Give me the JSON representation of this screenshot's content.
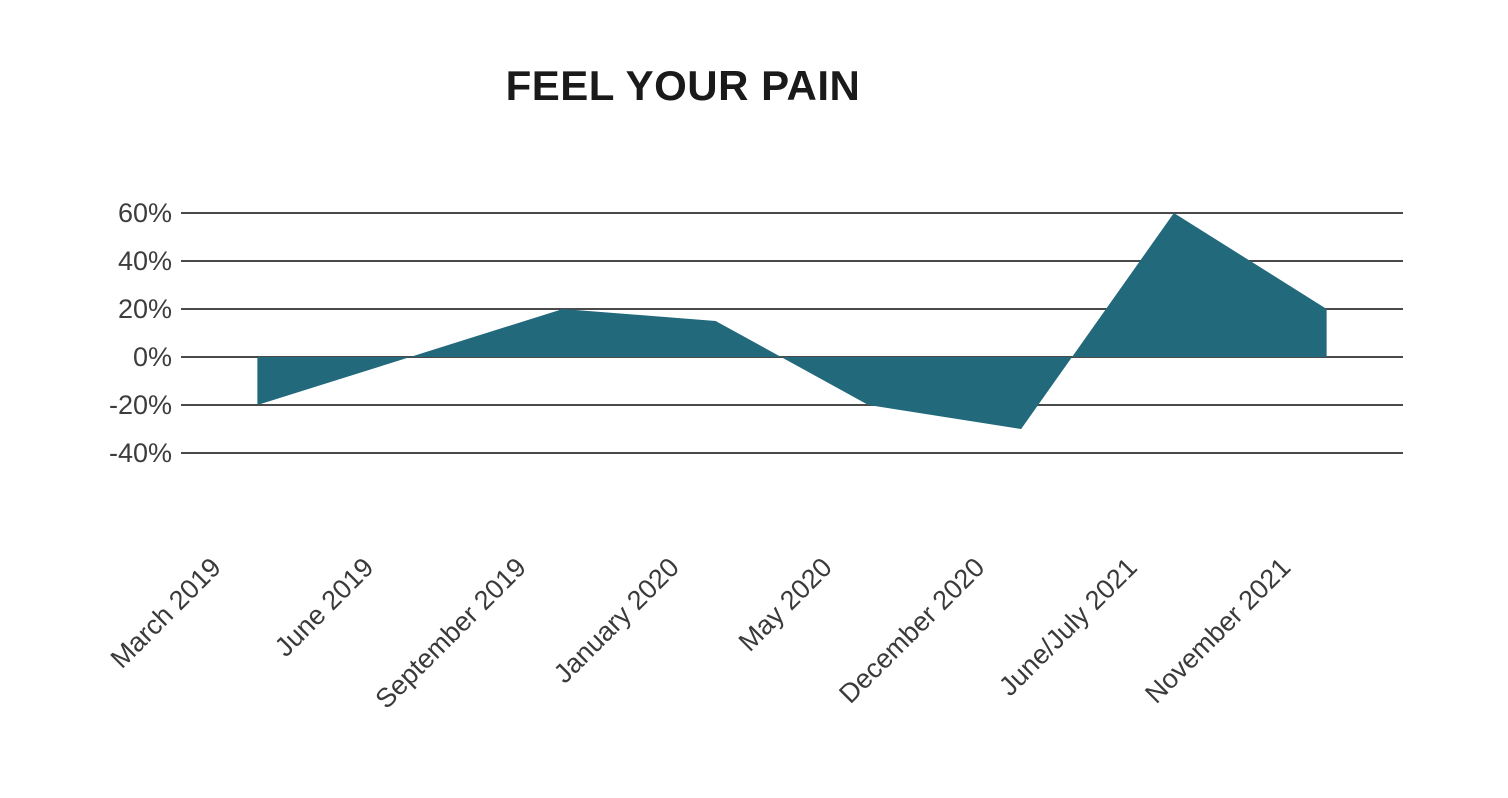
{
  "chart_data": {
    "type": "area",
    "title": "FEEL YOUR PAIN",
    "categories": [
      "March 2019",
      "June 2019",
      "September 2019",
      "January 2020",
      "May 2020",
      "December 2020",
      "June/July 2021",
      "November 2021"
    ],
    "values": [
      -20,
      0,
      20,
      15,
      -20,
      -30,
      60,
      20
    ],
    "unit": "%",
    "series_name": "",
    "xlabel": "",
    "ylabel": "",
    "yticks": [
      60,
      40,
      20,
      0,
      -20,
      -40
    ],
    "ytick_labels": [
      "60%",
      "40%",
      "20%",
      "0%",
      "-20%",
      "-40%"
    ],
    "ylim": [
      -45,
      65
    ],
    "baseline": 0,
    "grid": true,
    "legend_position": "none",
    "x_label_rotation_deg": -45,
    "colors": {
      "series_fill": "#21697B",
      "gridline": "#4a4a4a",
      "tick_text": "#3d3d3d",
      "title_text": "#1a1a1a",
      "background": "#ffffff"
    }
  }
}
